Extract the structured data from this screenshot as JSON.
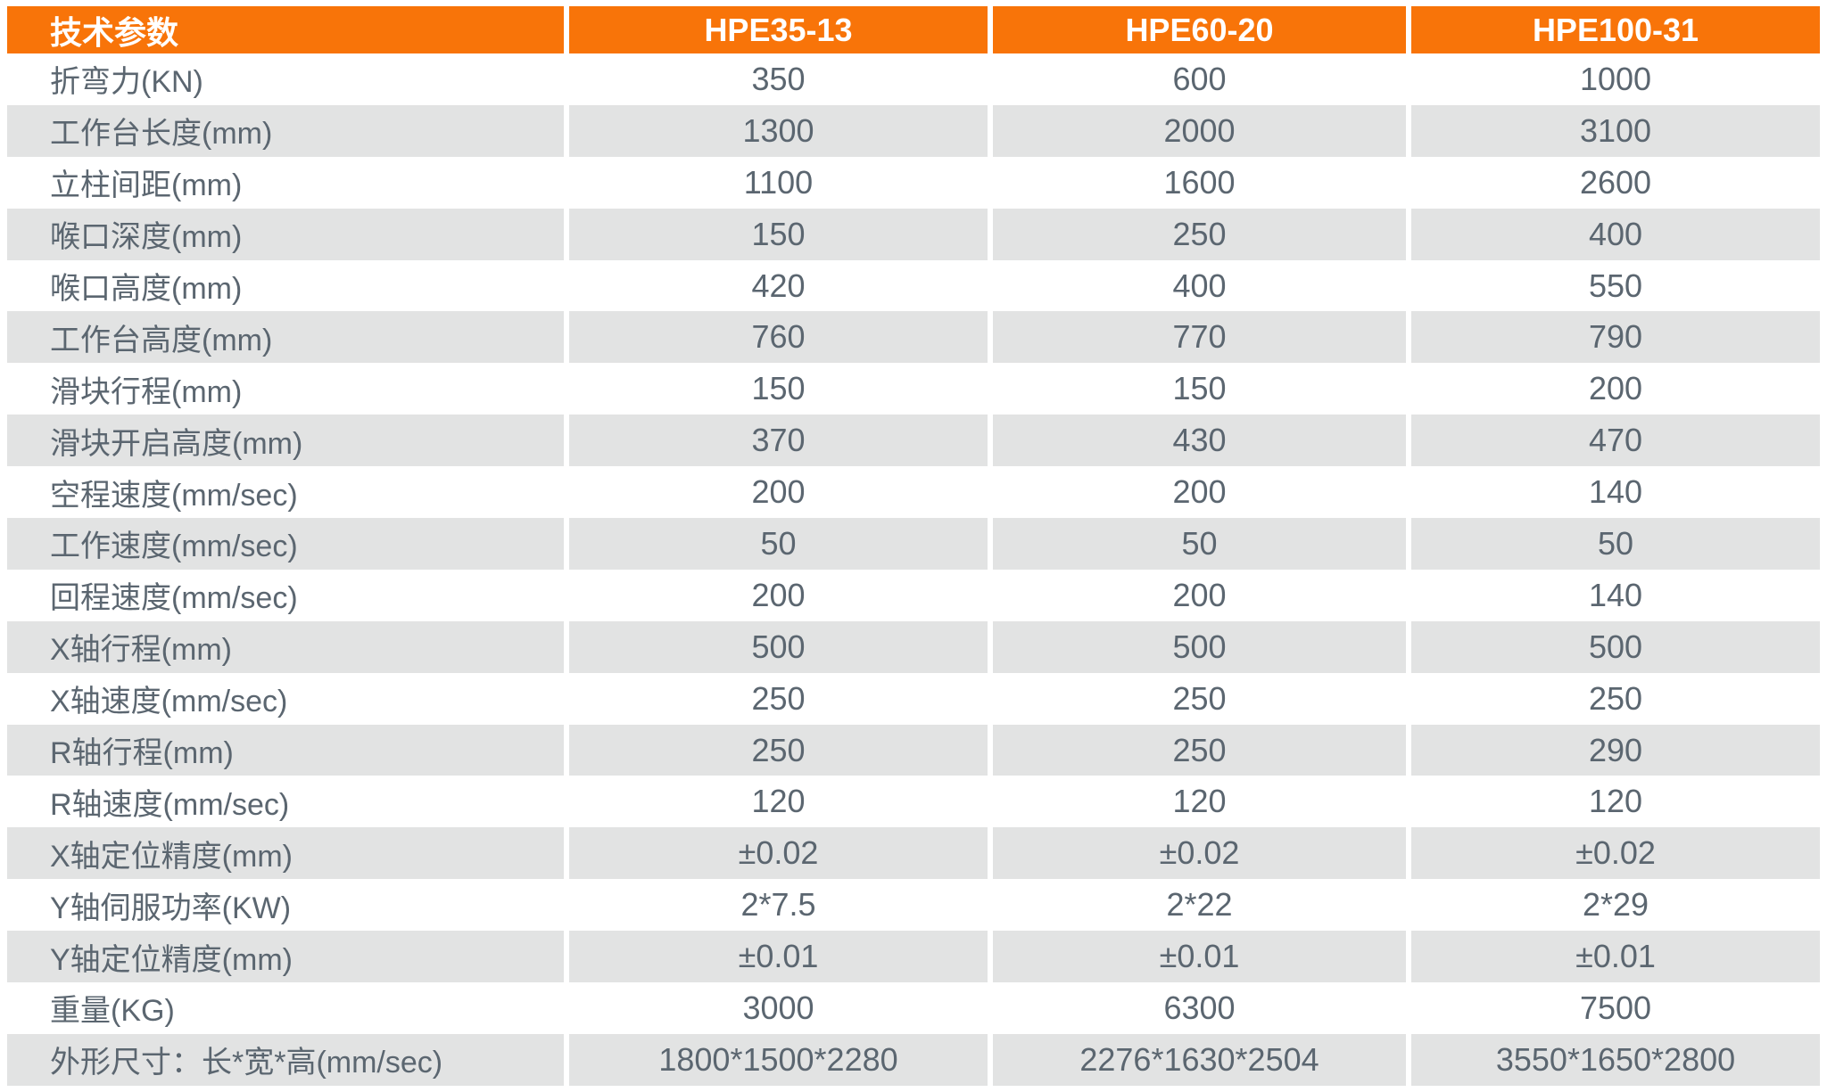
{
  "colors": {
    "header_bg": "#F87409",
    "header_text": "#FFFFFF",
    "alt_row_bg": "#E2E3E3",
    "row_bg": "#FFFFFF",
    "text": "#5B6670"
  },
  "chart_data": {
    "type": "table",
    "title": "技术参数",
    "legend_position": "none",
    "grid": "alternating-row-shading",
    "columns": [
      "技术参数",
      "HPE35-13",
      "HPE60-20",
      "HPE100-31"
    ],
    "rows": [
      [
        "折弯力(KN)",
        "350",
        "600",
        "1000"
      ],
      [
        "工作台长度(mm)",
        "1300",
        "2000",
        "3100"
      ],
      [
        "立柱间距(mm)",
        "1100",
        "1600",
        "2600"
      ],
      [
        "喉口深度(mm)",
        "150",
        "250",
        "400"
      ],
      [
        "喉口高度(mm)",
        "420",
        "400",
        "550"
      ],
      [
        "工作台高度(mm)",
        "760",
        "770",
        "790"
      ],
      [
        "滑块行程(mm)",
        "150",
        "150",
        "200"
      ],
      [
        "滑块开启高度(mm)",
        "370",
        "430",
        "470"
      ],
      [
        "空程速度(mm/sec)",
        "200",
        "200",
        "140"
      ],
      [
        "工作速度(mm/sec)",
        "50",
        "50",
        "50"
      ],
      [
        "回程速度(mm/sec)",
        "200",
        "200",
        "140"
      ],
      [
        "X轴行程(mm)",
        "500",
        "500",
        "500"
      ],
      [
        "X轴速度(mm/sec)",
        "250",
        "250",
        "250"
      ],
      [
        "R轴行程(mm)",
        "250",
        "250",
        "290"
      ],
      [
        "R轴速度(mm/sec)",
        "120",
        "120",
        "120"
      ],
      [
        "X轴定位精度(mm)",
        "±0.02",
        "±0.02",
        "±0.02"
      ],
      [
        "Y轴伺服功率(KW)",
        "2*7.5",
        "2*22",
        "2*29"
      ],
      [
        "Y轴定位精度(mm)",
        "±0.01",
        "±0.01",
        "±0.01"
      ],
      [
        "重量(KG)",
        "3000",
        "6300",
        "7500"
      ],
      [
        "外形尺寸：长*宽*高(mm/sec)",
        "1800*1500*2280",
        "2276*1630*2504",
        "3550*1650*2800"
      ]
    ]
  }
}
